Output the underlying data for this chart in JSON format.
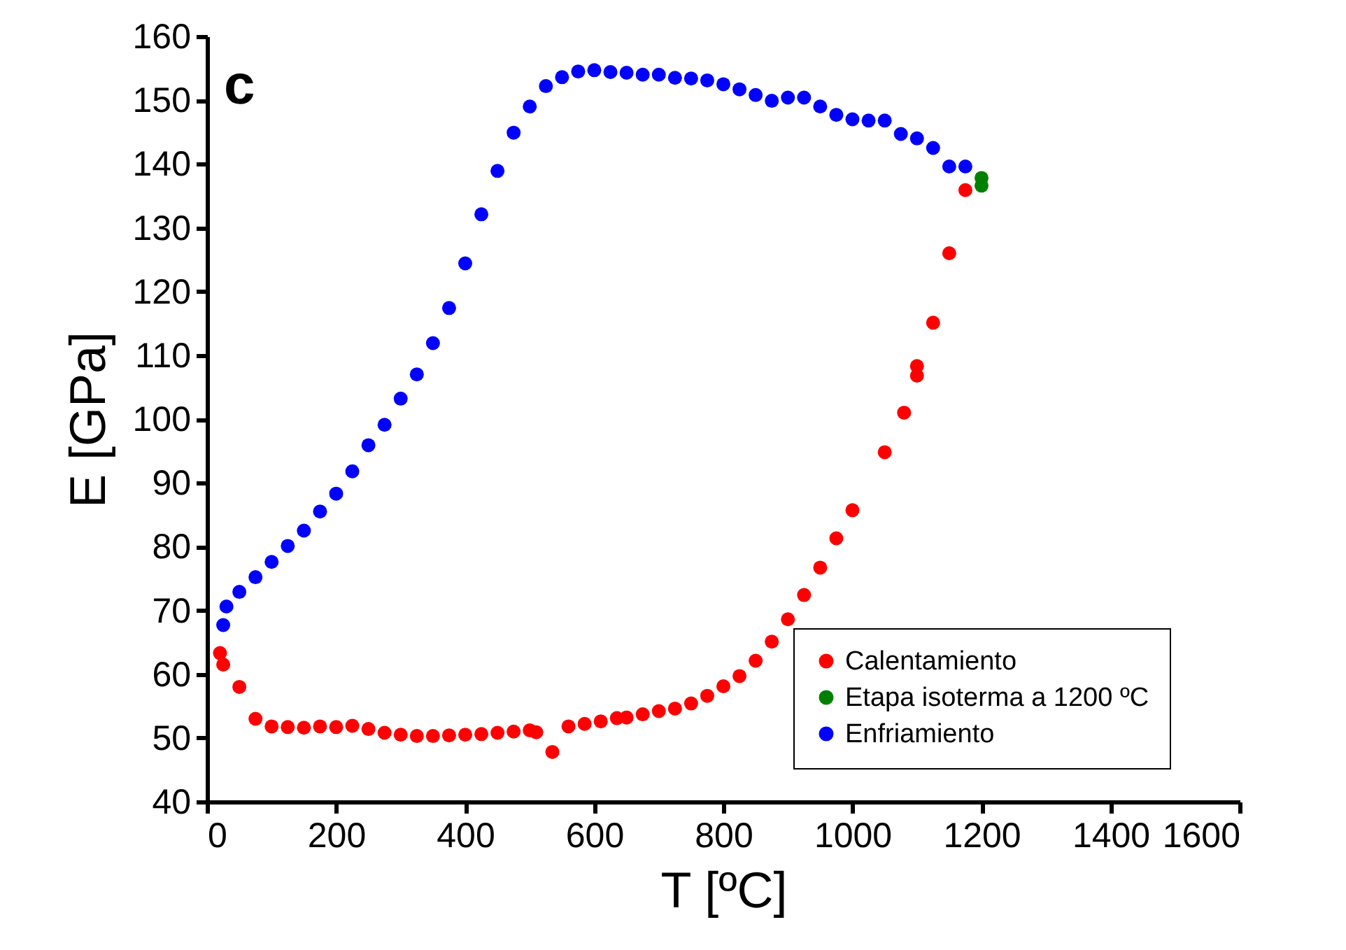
{
  "chart_data": {
    "type": "scatter",
    "xlabel": "T [ºC]",
    "ylabel": "E [GPa]",
    "annotations": [
      "c"
    ],
    "xlim": [
      0,
      1600
    ],
    "xticks": [
      0,
      200,
      400,
      600,
      800,
      1000,
      1200,
      1400,
      1600
    ],
    "ylim": [
      40,
      160
    ],
    "yticks": [
      40,
      50,
      60,
      70,
      80,
      90,
      100,
      110,
      120,
      130,
      140,
      150,
      160
    ],
    "grid": false,
    "legend": "bottom right",
    "marker": "circle",
    "series": [
      {
        "name": "Calentamiento",
        "color": "#ff0000",
        "x": [
          20,
          25,
          50,
          75,
          100,
          125,
          150,
          175,
          200,
          225,
          250,
          275,
          300,
          325,
          350,
          375,
          400,
          425,
          450,
          475,
          500,
          510,
          535,
          560,
          585,
          610,
          635,
          650,
          675,
          700,
          725,
          750,
          775,
          800,
          825,
          850,
          875,
          900,
          925,
          950,
          975,
          1000,
          1050,
          1080,
          1100,
          1100,
          1125,
          1150,
          1175
        ],
        "values": [
          63.3,
          61.5,
          58,
          53,
          51.8,
          51.7,
          51.6,
          51.8,
          51.7,
          51.9,
          51.4,
          50.8,
          50.5,
          50.3,
          50.3,
          50.4,
          50.5,
          50.6,
          50.8,
          51,
          51.2,
          50.9,
          47.8,
          51.8,
          52.2,
          52.6,
          53.1,
          53.2,
          53.7,
          54.2,
          54.6,
          55.4,
          56.6,
          58.1,
          59.7,
          62.1,
          65.1,
          68.6,
          72.4,
          76.7,
          81.3,
          85.7,
          94.8,
          101,
          106.8,
          108.3,
          115.1,
          126,
          135.9
        ]
      },
      {
        "name": "Etapa isoterma a 1200 ºC",
        "color": "#008000",
        "x": [
          1200,
          1200
        ],
        "values": [
          136.6,
          137.8
        ]
      },
      {
        "name": "Enfriamiento",
        "color": "#0000ff",
        "x": [
          25,
          30,
          50,
          75,
          100,
          125,
          150,
          175,
          200,
          225,
          250,
          275,
          300,
          325,
          350,
          375,
          400,
          425,
          450,
          475,
          500,
          525,
          550,
          575,
          600,
          625,
          650,
          675,
          700,
          725,
          750,
          775,
          800,
          825,
          850,
          875,
          900,
          925,
          950,
          975,
          1000,
          1025,
          1050,
          1075,
          1100,
          1125,
          1150,
          1175
        ],
        "values": [
          67.7,
          70.6,
          72.9,
          75.2,
          77.6,
          80.1,
          82.5,
          85.5,
          88.3,
          91.8,
          95.9,
          99.1,
          103.2,
          107,
          111.9,
          117.4,
          124.4,
          132.1,
          138.9,
          144.9,
          149,
          152.2,
          153.6,
          154.5,
          154.7,
          154.4,
          154.3,
          154,
          154,
          153.5,
          153.4,
          153.1,
          152.5,
          151.7,
          150.8,
          149.9,
          150.4,
          150.4,
          149,
          147.7,
          147,
          146.8,
          146.8,
          144.7,
          144,
          142.5,
          139.6,
          139.6
        ]
      }
    ]
  }
}
